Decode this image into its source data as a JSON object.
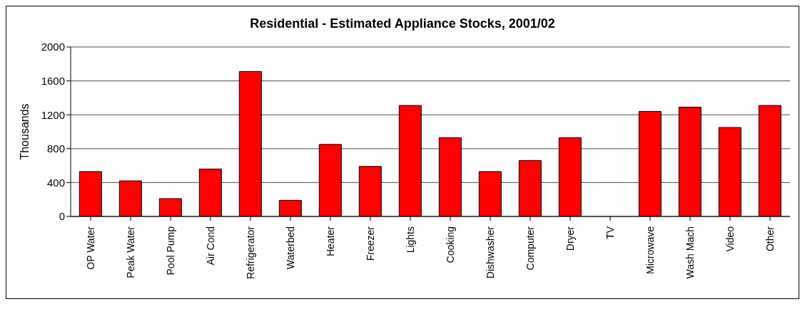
{
  "chart_data": {
    "type": "bar",
    "title": "Residential - Estimated Appliance Stocks, 2001/02",
    "ylabel": "Thousands",
    "categories": [
      "OP Water",
      "Peak Water",
      "Pool Pump",
      "Air Cond",
      "Refrigerator",
      "Waterbed",
      "Heater",
      "Freezer",
      "Lights",
      "Cooking",
      "Dishwasher",
      "Computer",
      "Dryer",
      "TV",
      "Microwave",
      "Wash Mach",
      "Video",
      "Other"
    ],
    "values": [
      530,
      420,
      210,
      560,
      1710,
      190,
      850,
      590,
      1310,
      930,
      530,
      660,
      930,
      0,
      1240,
      1290,
      1050,
      1310
    ],
    "color": "#ff0000",
    "ylim": [
      0,
      2000
    ],
    "yticks": [
      0,
      400,
      800,
      1200,
      1600,
      2000
    ],
    "grid": "y",
    "legend": false
  }
}
